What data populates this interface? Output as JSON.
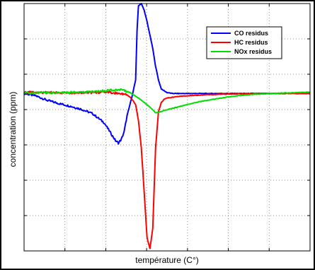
{
  "chart_data": {
    "type": "line",
    "title": "",
    "xlabel": "température (C°)",
    "ylabel": "concentration (ppm)",
    "xlim": [
      0,
      100
    ],
    "ylim": [
      -35,
      20
    ],
    "grid": true,
    "tick_labels_shown": false,
    "legend_position": "top-right",
    "series": [
      {
        "name": "CO residus",
        "color": "#0000ff",
        "x": [
          0,
          4,
          8,
          12,
          16,
          20,
          24,
          28,
          30,
          32,
          33,
          34,
          35,
          36,
          37,
          38,
          39,
          39.5,
          40,
          41,
          42,
          43,
          44,
          45,
          46,
          47,
          48,
          50,
          52,
          55,
          60,
          70,
          80,
          90,
          100
        ],
        "y": [
          0,
          -0.5,
          -1.5,
          -2.2,
          -2.8,
          -3.5,
          -4.5,
          -6.5,
          -8.5,
          -10.5,
          -11,
          -10.2,
          -8.5,
          -5,
          -2.5,
          0,
          3,
          14,
          19.5,
          20,
          18.5,
          16,
          13,
          10,
          6,
          3,
          1,
          0.2,
          0,
          0,
          0,
          0,
          0,
          0,
          0
        ]
      },
      {
        "name": "HC residus",
        "color": "#ff0000",
        "x": [
          0,
          5,
          10,
          15,
          20,
          25,
          28,
          30,
          32,
          34,
          36,
          37,
          38,
          39,
          40,
          41,
          42,
          43,
          44,
          45,
          46,
          47,
          48,
          49,
          50,
          55,
          60,
          65,
          70,
          80,
          90,
          100
        ],
        "y": [
          0.3,
          0.2,
          0.2,
          0.1,
          0.2,
          0.2,
          0.3,
          0.2,
          0.1,
          0,
          -0.3,
          -0.8,
          -1.5,
          -2.5,
          -6,
          -12,
          -22,
          -32,
          -34.5,
          -30,
          -12,
          -4,
          -2,
          -1.3,
          -1,
          -0.6,
          -0.4,
          -0.25,
          -0.15,
          -0.05,
          0,
          0
        ]
      },
      {
        "name": "NOx residus",
        "color": "#00dd00",
        "x": [
          0,
          5,
          10,
          15,
          20,
          25,
          30,
          33,
          35,
          37,
          38,
          39,
          40,
          42,
          44,
          46,
          48,
          50,
          55,
          60,
          65,
          70,
          75,
          80,
          90,
          100
        ],
        "y": [
          0.1,
          0.1,
          0.2,
          0.2,
          0.3,
          0.4,
          0.7,
          0.9,
          0.7,
          0.2,
          -0.2,
          -0.6,
          -1,
          -2,
          -3,
          -4.3,
          -4,
          -3.6,
          -2.8,
          -2,
          -1.4,
          -0.9,
          -0.5,
          -0.2,
          0.1,
          0.3
        ]
      }
    ]
  }
}
